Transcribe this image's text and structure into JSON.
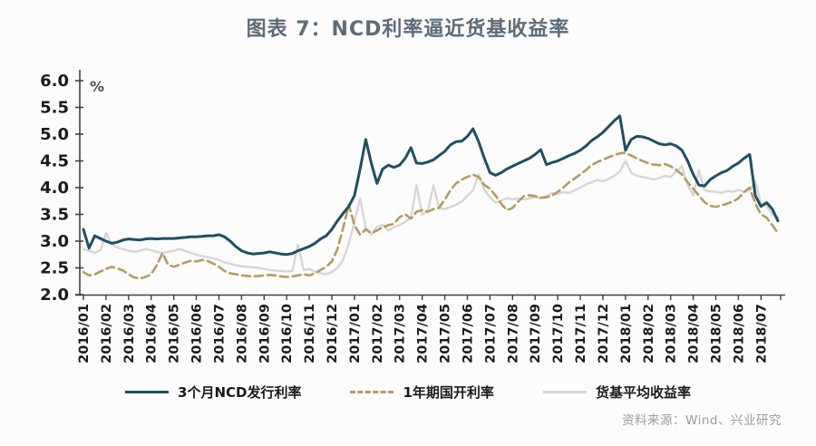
{
  "title": "图表 7：NCD利率逼近货基收益率",
  "source": "资料来源：Wind、兴业研究",
  "colors": {
    "background": "#fcfcfc",
    "title": "#5d6b79",
    "axis": "#404040",
    "tick_label": "#1a1a1a",
    "source_text": "#9b9b9b"
  },
  "chart_data": {
    "type": "line",
    "title": "图表 7：NCD利率逼近货基收益率",
    "xlabel": "",
    "ylabel": "%",
    "ylim": [
      2.0,
      6.0
    ],
    "grid": false,
    "legend_position": "bottom",
    "y_ticks": [
      "2.0",
      "2.5",
      "3.0",
      "3.5",
      "4.0",
      "4.5",
      "5.0",
      "5.5",
      "6.0"
    ],
    "points_per_month": 4,
    "x_tick_labels": [
      "2016/01",
      "2016/02",
      "2016/03",
      "2016/04",
      "2016/05",
      "2016/06",
      "2016/07",
      "2016/08",
      "2016/09",
      "2016/10",
      "2016/11",
      "2016/12",
      "2017/01",
      "2017/02",
      "2017/03",
      "2017/04",
      "2017/05",
      "2017/06",
      "2017/07",
      "2017/08",
      "2017/09",
      "2017/10",
      "2017/11",
      "2017/12",
      "2018/01",
      "2018/02",
      "2018/03",
      "2018/04",
      "2018/05",
      "2018/06",
      "2018/07"
    ],
    "series": [
      {
        "name": "3个月NCD发行利率",
        "color": "#204f63",
        "style": "solid",
        "width": 3,
        "values": [
          3.22,
          2.87,
          3.1,
          3.05,
          3.0,
          2.96,
          2.98,
          3.02,
          3.04,
          3.03,
          3.02,
          3.04,
          3.05,
          3.04,
          3.05,
          3.05,
          3.05,
          3.06,
          3.07,
          3.08,
          3.08,
          3.09,
          3.1,
          3.1,
          3.12,
          3.08,
          3.0,
          2.9,
          2.82,
          2.78,
          2.76,
          2.77,
          2.78,
          2.8,
          2.78,
          2.76,
          2.75,
          2.77,
          2.82,
          2.86,
          2.9,
          2.96,
          3.04,
          3.1,
          3.22,
          3.38,
          3.52,
          3.65,
          3.85,
          4.35,
          4.9,
          4.45,
          4.08,
          4.35,
          4.42,
          4.38,
          4.42,
          4.55,
          4.75,
          4.46,
          4.45,
          4.48,
          4.52,
          4.6,
          4.68,
          4.8,
          4.86,
          4.87,
          4.96,
          5.1,
          4.86,
          4.55,
          4.28,
          4.23,
          4.28,
          4.35,
          4.4,
          4.45,
          4.5,
          4.55,
          4.62,
          4.71,
          4.43,
          4.47,
          4.5,
          4.55,
          4.6,
          4.64,
          4.7,
          4.78,
          4.88,
          4.95,
          5.03,
          5.14,
          5.25,
          5.34,
          4.7,
          4.9,
          4.96,
          4.95,
          4.92,
          4.87,
          4.82,
          4.8,
          4.82,
          4.78,
          4.7,
          4.5,
          4.25,
          4.05,
          4.03,
          4.15,
          4.22,
          4.28,
          4.32,
          4.4,
          4.46,
          4.55,
          4.62,
          3.85,
          3.65,
          3.72,
          3.6,
          3.38
        ]
      },
      {
        "name": "1年期国开利率",
        "color": "#b59b62",
        "style": "dashed",
        "width": 2.6,
        "values": [
          2.42,
          2.36,
          2.38,
          2.43,
          2.48,
          2.52,
          2.49,
          2.45,
          2.38,
          2.32,
          2.3,
          2.33,
          2.38,
          2.55,
          2.78,
          2.56,
          2.52,
          2.56,
          2.6,
          2.63,
          2.62,
          2.65,
          2.63,
          2.58,
          2.52,
          2.44,
          2.4,
          2.38,
          2.36,
          2.35,
          2.34,
          2.35,
          2.36,
          2.37,
          2.36,
          2.34,
          2.33,
          2.34,
          2.36,
          2.38,
          2.36,
          2.4,
          2.46,
          2.52,
          2.62,
          2.85,
          3.25,
          3.68,
          3.3,
          3.12,
          3.22,
          3.15,
          3.2,
          3.26,
          3.3,
          3.32,
          3.45,
          3.5,
          3.42,
          3.55,
          3.58,
          3.55,
          3.6,
          3.62,
          3.78,
          3.95,
          4.08,
          4.15,
          4.2,
          4.24,
          4.2,
          4.05,
          3.98,
          3.85,
          3.7,
          3.58,
          3.62,
          3.74,
          3.84,
          3.86,
          3.84,
          3.81,
          3.82,
          3.85,
          3.92,
          4.0,
          4.1,
          4.17,
          4.25,
          4.33,
          4.42,
          4.48,
          4.52,
          4.57,
          4.61,
          4.64,
          4.65,
          4.6,
          4.55,
          4.5,
          4.46,
          4.43,
          4.42,
          4.44,
          4.4,
          4.33,
          4.25,
          4.1,
          3.98,
          3.85,
          3.73,
          3.66,
          3.64,
          3.67,
          3.7,
          3.74,
          3.8,
          3.92,
          4.0,
          3.7,
          3.5,
          3.44,
          3.3,
          3.15
        ]
      },
      {
        "name": "货基平均收益率",
        "color": "#d6d6d6",
        "style": "solid",
        "width": 2.4,
        "values": [
          2.85,
          2.82,
          2.78,
          2.83,
          3.15,
          2.95,
          2.88,
          2.85,
          2.82,
          2.8,
          2.82,
          2.85,
          2.83,
          2.8,
          2.78,
          2.8,
          2.82,
          2.85,
          2.82,
          2.78,
          2.75,
          2.72,
          2.7,
          2.68,
          2.65,
          2.6,
          2.58,
          2.55,
          2.53,
          2.52,
          2.51,
          2.5,
          2.48,
          2.46,
          2.45,
          2.44,
          2.43,
          2.44,
          2.93,
          2.46,
          2.48,
          2.43,
          2.4,
          2.38,
          2.42,
          2.5,
          2.65,
          2.95,
          3.36,
          3.8,
          3.25,
          3.12,
          3.27,
          3.3,
          3.2,
          3.26,
          3.3,
          3.36,
          3.44,
          4.04,
          3.5,
          3.56,
          4.04,
          3.62,
          3.6,
          3.64,
          3.68,
          3.74,
          3.85,
          3.95,
          4.24,
          3.96,
          3.82,
          3.72,
          3.76,
          3.8,
          3.78,
          3.8,
          3.78,
          3.8,
          3.82,
          3.8,
          3.84,
          3.9,
          3.88,
          3.92,
          3.9,
          3.95,
          4.0,
          4.06,
          4.1,
          4.14,
          4.12,
          4.16,
          4.22,
          4.3,
          4.5,
          4.28,
          4.22,
          4.2,
          4.18,
          4.15,
          4.18,
          4.22,
          4.2,
          4.3,
          4.4,
          4.05,
          3.85,
          4.33,
          3.95,
          3.93,
          3.92,
          3.9,
          3.94,
          3.92,
          3.96,
          3.92,
          3.95,
          4.12,
          3.7,
          3.66,
          3.5,
          3.44
        ]
      }
    ]
  }
}
